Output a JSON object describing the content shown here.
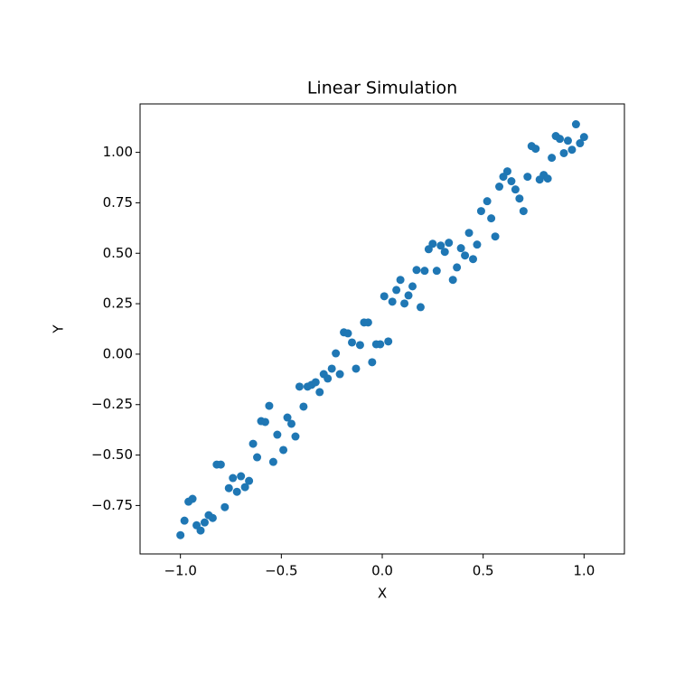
{
  "chart_data": {
    "type": "scatter",
    "title": "Linear Simulation",
    "x_label": "X",
    "y_label": "Y",
    "color": "#1f77b4",
    "xlim": [
      -1.2,
      1.2
    ],
    "ylim": [
      -0.99,
      1.24
    ],
    "xticks": [
      {
        "value": -1.0,
        "label": "−1.0"
      },
      {
        "value": -0.5,
        "label": "−0.5"
      },
      {
        "value": 0,
        "label": "0.0"
      },
      {
        "value": 0.5,
        "label": "0.5"
      },
      {
        "value": 1.0,
        "label": "1.0"
      }
    ],
    "yticks": [
      {
        "value": -0.75,
        "label": "−0.75"
      },
      {
        "value": -0.5,
        "label": "−0.50"
      },
      {
        "value": -0.25,
        "label": "−0.25"
      },
      {
        "value": 0,
        "label": "0.00"
      },
      {
        "value": 0.25,
        "label": "0.25"
      },
      {
        "value": 0.5,
        "label": "0.50"
      },
      {
        "value": 0.75,
        "label": "0.75"
      },
      {
        "value": 1.0,
        "label": "1.00"
      }
    ],
    "x": [
      -1.0,
      -0.98,
      -0.96,
      -0.94,
      -0.92,
      -0.9,
      -0.88,
      -0.86,
      -0.84,
      -0.82,
      -0.8,
      -0.78,
      -0.76,
      -0.74,
      -0.72,
      -0.7,
      -0.68,
      -0.66,
      -0.64,
      -0.62,
      -0.6,
      -0.58,
      -0.56,
      -0.54,
      -0.52,
      -0.49,
      -0.47,
      -0.45,
      -0.43,
      -0.41,
      -0.39,
      -0.37,
      -0.35,
      -0.33,
      -0.31,
      -0.29,
      -0.27,
      -0.25,
      -0.23,
      -0.21,
      -0.19,
      -0.17,
      -0.15,
      -0.13,
      -0.11,
      -0.09,
      -0.07,
      -0.05,
      -0.03,
      -0.01,
      0.01,
      0.03,
      0.05,
      0.07,
      0.09,
      0.11,
      0.13,
      0.15,
      0.17,
      0.19,
      0.21,
      0.23,
      0.25,
      0.27,
      0.29,
      0.31,
      0.33,
      0.35,
      0.37,
      0.39,
      0.41,
      0.43,
      0.45,
      0.47,
      0.49,
      0.52,
      0.54,
      0.56,
      0.58,
      0.6,
      0.62,
      0.64,
      0.66,
      0.68,
      0.7,
      0.72,
      0.74,
      0.76,
      0.78,
      0.8,
      0.82,
      0.84,
      0.86,
      0.88,
      0.9,
      0.92,
      0.94,
      0.96,
      0.98,
      1.0
    ],
    "values": [
      -0.897,
      -0.825,
      -0.731,
      -0.717,
      -0.848,
      -0.874,
      -0.834,
      -0.798,
      -0.812,
      -0.547,
      -0.547,
      -0.758,
      -0.664,
      -0.614,
      -0.682,
      -0.605,
      -0.659,
      -0.628,
      -0.444,
      -0.511,
      -0.332,
      -0.336,
      -0.256,
      -0.534,
      -0.399,
      -0.475,
      -0.314,
      -0.345,
      -0.408,
      -0.161,
      -0.26,
      -0.161,
      -0.152,
      -0.139,
      -0.188,
      -0.099,
      -0.121,
      -0.072,
      0.004,
      -0.099,
      0.108,
      0.103,
      0.058,
      -0.072,
      0.045,
      0.157,
      0.157,
      -0.04,
      0.049,
      0.049,
      0.287,
      0.063,
      0.26,
      0.318,
      0.368,
      0.251,
      0.291,
      0.336,
      0.417,
      0.233,
      0.413,
      0.52,
      0.547,
      0.413,
      0.538,
      0.507,
      0.552,
      0.368,
      0.43,
      0.525,
      0.489,
      0.601,
      0.471,
      0.543,
      0.709,
      0.758,
      0.673,
      0.583,
      0.83,
      0.879,
      0.906,
      0.857,
      0.816,
      0.771,
      0.709,
      0.879,
      1.031,
      1.018,
      0.865,
      0.888,
      0.87,
      0.973,
      1.081,
      1.067,
      0.996,
      1.058,
      1.013,
      1.139,
      1.045,
      1.076
    ]
  }
}
